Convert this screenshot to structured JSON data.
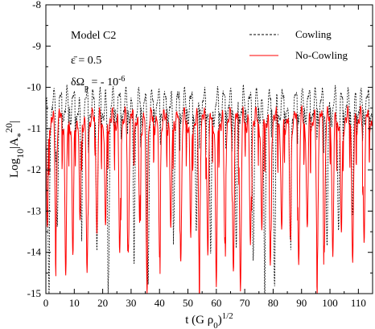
{
  "chart_data": {
    "type": "line",
    "title": "",
    "xlabel": "t (G ρ",
    "xlabel_sub": "0",
    "xlabel_tail": ")",
    "xlabel_sup": "1/2",
    "ylabel": "Log",
    "ylabel_sub": "10",
    "ylabel_abs": "|A",
    "ylabel_abs_sub": "*",
    "ylabel_abs_sup": "20",
    "ylabel_tail": "|",
    "xlim": [
      0,
      115
    ],
    "ylim": [
      -15,
      -8
    ],
    "x_ticks": [
      0,
      10,
      20,
      30,
      40,
      50,
      60,
      70,
      80,
      90,
      100,
      110
    ],
    "y_ticks": [
      -8,
      -9,
      -10,
      -11,
      -12,
      -13,
      -14,
      -15
    ],
    "x_tick_labels": [
      "0",
      "10",
      "20",
      "30",
      "40",
      "50",
      "60",
      "70",
      "80",
      "90",
      "100",
      "110"
    ],
    "y_tick_labels": [
      "-8",
      "-9",
      "-10",
      "-11",
      "-12",
      "-13",
      "-14",
      "-15"
    ],
    "grid": false,
    "legend_position": "top-right",
    "annotations": {
      "model": "Model C2",
      "epsilon": "ε̄  = 0.5",
      "domega_prefix": "δΩ",
      "domega_sub": "p",
      "domega_eq": " = - 10",
      "domega_sup": "-6"
    },
    "series": [
      {
        "name": "Cowling",
        "color": "#000000",
        "dash": "dashed",
        "oscillation_period": 2.3,
        "baseline_range": [
          -10.8,
          -10.1
        ],
        "notable_dips": [
          [
            1,
            -14.8
          ],
          [
            4,
            -13.1
          ],
          [
            12.5,
            -13.3
          ],
          [
            18,
            -13.6
          ],
          [
            22,
            -14.6
          ],
          [
            31,
            -13.6
          ],
          [
            36,
            -14.5
          ],
          [
            45,
            -13.2
          ],
          [
            53,
            -13.5
          ],
          [
            58,
            -14.4
          ],
          [
            67,
            -14.2
          ],
          [
            73,
            -13.9
          ],
          [
            77,
            -14.8
          ],
          [
            80.5,
            -14.9
          ],
          [
            86,
            -13.9
          ],
          [
            99,
            -13.9
          ],
          [
            103,
            -13.2
          ],
          [
            108,
            -13.0
          ]
        ]
      },
      {
        "name": "No-Cowling",
        "color": "#ff0000",
        "dash": "solid",
        "oscillation_period": 2.3,
        "baseline_range": [
          -11.0,
          -10.6
        ],
        "notable_dips": [
          [
            0.5,
            -13.5
          ],
          [
            3.5,
            -13.6
          ],
          [
            7,
            -14.7
          ],
          [
            9.5,
            -14.2
          ],
          [
            12,
            -13.4
          ],
          [
            14.5,
            -14.7
          ],
          [
            18,
            -13.5
          ],
          [
            21,
            -13.6
          ],
          [
            26,
            -14.2
          ],
          [
            29,
            -13.9
          ],
          [
            33,
            -13.2
          ],
          [
            35.5,
            -14.4
          ],
          [
            40,
            -14.1
          ],
          [
            44,
            -13.6
          ],
          [
            47.5,
            -14.0
          ],
          [
            51,
            -13.7
          ],
          [
            54,
            -14.3
          ],
          [
            57,
            -13.9
          ],
          [
            60,
            -14.9
          ],
          [
            63,
            -13.9
          ],
          [
            66,
            -14.3
          ],
          [
            68.5,
            -14.9
          ],
          [
            72,
            -14.0
          ],
          [
            76,
            -13.5
          ],
          [
            79,
            -14.4
          ],
          [
            83,
            -13.7
          ],
          [
            86,
            -13.5
          ],
          [
            89,
            -14.1
          ],
          [
            92,
            -13.6
          ],
          [
            95.5,
            -14.4
          ],
          [
            98,
            -13.8
          ],
          [
            101,
            -14.2
          ],
          [
            104,
            -13.6
          ],
          [
            108,
            -14.4
          ],
          [
            112,
            -13.5
          ]
        ]
      }
    ]
  }
}
